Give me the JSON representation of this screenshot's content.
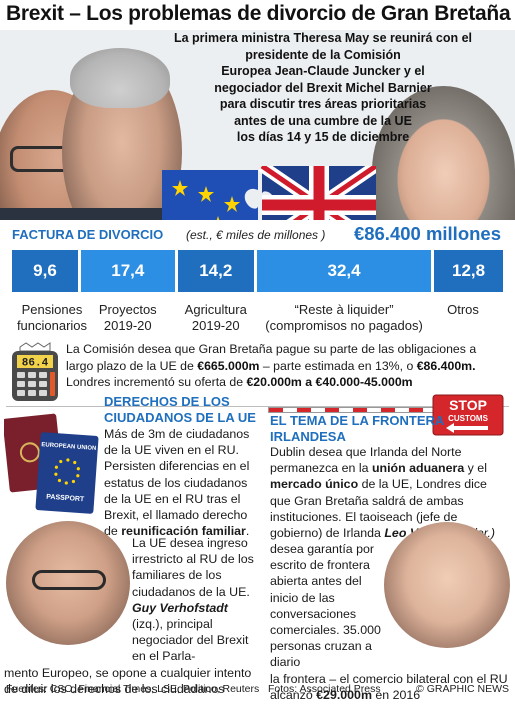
{
  "title": "Brexit – Los problemas de divorcio de Gran Bretaña",
  "intro": [
    "La primera ministra Theresa May se reunirá con el presidente de la Comisión",
    "Europea Jean-Claude Juncker y el",
    "negociador del Brexit Michel Barnier",
    "para discutir tres áreas prioritarias",
    "antes de una cumbre de la UE",
    "los días 14 y 15 de diciembre"
  ],
  "divorce_bill": {
    "heading": "FACTURA DE DIVORCIO",
    "unit_note": "(est., € miles de millones )",
    "total": "€86.400 millones"
  },
  "chart_data": {
    "type": "bar",
    "orientation": "stacked-horizontal",
    "unit": "€ miles de millones",
    "categories": [
      "Pensiones funcionarios",
      "Proyectos 2019-20",
      "Agricultura 2019-20",
      "“Reste à liquider” (compromisos no pagados)",
      "Otros"
    ],
    "values": [
      9.6,
      17.4,
      14.2,
      32.4,
      12.8
    ],
    "value_labels": [
      "9,6",
      "17,4",
      "14,2",
      "32,4",
      "12,8"
    ],
    "label_lines": [
      [
        "Pensiones",
        "funcionarios"
      ],
      [
        "Proyectos",
        "2019-20"
      ],
      [
        "Agricultura",
        "2019-20"
      ],
      [
        "“Reste à liquider”",
        "(compromisos no pagados)"
      ],
      [
        "Otros"
      ]
    ],
    "colors": [
      "#1f6fbe",
      "#2c8fe3",
      "#1f6fbe",
      "#2c8fe3",
      "#1f6fbe"
    ],
    "total": "€86.400 millones"
  },
  "calculator_display": "86.4",
  "commission": {
    "line1_a": "La Comisión desea que Gran Bretaña pague su parte de las obligaciones a",
    "line2_a": "largo plazo de la UE de ",
    "line2_b": "€665.000m",
    "line2_c": " – parte estimada en 13%, o ",
    "line2_d": "€86.400m.",
    "line3_a": "Londres incrementó su oferta de ",
    "line3_b": "€20.000m a €40.000-45.000m"
  },
  "citizens": {
    "title": "DERECHOS DE LOS CIUDADANOS DE LA UE",
    "body_a": "Más de 3m de ciudadanos de la UE viven en el RU. Persisten diferencias en el estatus de los ciudadanos de la UE en el RU tras el Brexit, el llamado derecho de ",
    "body_bold": "reunificación familiar",
    "body_b": ".",
    "tail_a": "La UE desea ingreso irrestricto al RU de los familiares de los ciudadanos de la UE.",
    "tail_name": "Guy Verhofstadt",
    "tail_role": " (izq.),",
    "tail_b": "principal negociador del Brexit en el Parla-",
    "tail_c": "mento Europeo, se opone a cualquier intento de diluir los derechos de los ciudadanos"
  },
  "passport_labels": {
    "union": "EUROPEAN UNION",
    "passport": "PASSPORT"
  },
  "stop_sign": {
    "stop": "STOP",
    "customs": "CUSTOMS"
  },
  "border": {
    "title": "EL TEMA DE LA FRONTERA IRLANDESA",
    "body_a": "Dublin desea que Irlanda del Norte permanezca en la ",
    "body_bold1": "unión aduanera",
    "body_b": " y el ",
    "body_bold2": "mercado único",
    "body_c": " de la UE, Londres dice que Gran Bretaña saldrá de ambas instituciones. El taoiseach (jefe de gobierno) de Irlanda ",
    "body_name": "Leo Varadkar",
    "body_role": " (der.)",
    "tail_a": "desea garantía por escrito de frontera abierta antes del inicio de las conversaciones comerciales. 35.000 personas cruzan a diario",
    "tail_b": "la frontera – el comercio bilateral con el RU alcanzó ",
    "tail_bold": "€29.000m",
    "tail_c": " en 2016"
  },
  "footer": {
    "sources": "Fuentes: CSO, Financial Times, LSE, Politico, Reuters",
    "photos": "Fotos: Associated Press",
    "brand": "© GRAPHIC NEWS"
  }
}
